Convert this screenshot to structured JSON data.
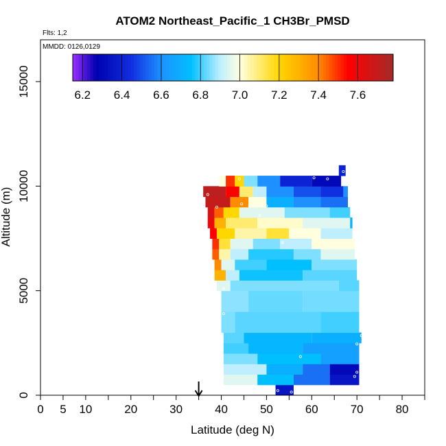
{
  "chart_data": {
    "type": "heatmap",
    "title": "ATOM2 Northeast_Pacific_1 CH3Br_PMSD",
    "annotations": {
      "flights": "Flts: 1,2",
      "dates": "MMDD: 0126,0129"
    },
    "xlabel": "Latitude (deg N)",
    "ylabel": "Altitude (m)",
    "xlim": [
      0,
      85
    ],
    "ylim": [
      0,
      17000
    ],
    "xticks": [
      0,
      5,
      10,
      20,
      30,
      40,
      50,
      60,
      70,
      80
    ],
    "xtick_labels": [
      "0",
      "5",
      "10",
      "20",
      "30",
      "40",
      "50",
      "60",
      "70",
      "80"
    ],
    "x_minor_ticks": [
      15,
      25,
      35,
      45,
      55,
      65,
      75,
      85
    ],
    "yticks": [
      0,
      5000,
      10000,
      15000
    ],
    "ytick_labels": [
      "0",
      "5000",
      "10000",
      "15000"
    ],
    "marker": {
      "latitude": 35,
      "label": ""
    },
    "colorbar": {
      "range": [
        6.15,
        7.78
      ],
      "ticks": [
        6.2,
        6.4,
        6.6,
        6.8,
        7.0,
        7.2,
        7.4,
        7.6
      ],
      "tick_labels": [
        "6.2",
        "6.4",
        "6.6",
        "6.8",
        "7.0",
        "7.2",
        "7.4",
        "7.6"
      ],
      "stops": [
        {
          "v": 6.15,
          "c": "#9B30FF"
        },
        {
          "v": 6.27,
          "c": "#0000B0"
        },
        {
          "v": 6.45,
          "c": "#1030E0"
        },
        {
          "v": 6.6,
          "c": "#1E90FF"
        },
        {
          "v": 6.75,
          "c": "#00BFFF"
        },
        {
          "v": 6.9,
          "c": "#BFEFFF"
        },
        {
          "v": 7.0,
          "c": "#FFFFE0"
        },
        {
          "v": 7.2,
          "c": "#FFD700"
        },
        {
          "v": 7.4,
          "c": "#FF8C00"
        },
        {
          "v": 7.55,
          "c": "#FF0000"
        },
        {
          "v": 7.78,
          "c": "#A52A2A"
        }
      ]
    },
    "rows": [
      {
        "alt_bottom": 0,
        "alt_top": 500,
        "cells": [
          [
            52,
            56,
            6.35
          ]
        ]
      },
      {
        "alt_bottom": 500,
        "alt_top": 1000,
        "cells": [
          [
            40.5,
            48,
            6.95
          ],
          [
            48,
            56,
            6.75
          ],
          [
            56,
            64,
            6.55
          ],
          [
            64,
            70.5,
            6.35
          ]
        ]
      },
      {
        "alt_bottom": 1000,
        "alt_top": 1500,
        "cells": [
          [
            40.5,
            50,
            6.9
          ],
          [
            50,
            58,
            6.7
          ],
          [
            58,
            64,
            6.55
          ],
          [
            64,
            70.5,
            6.3
          ]
        ]
      },
      {
        "alt_bottom": 1500,
        "alt_top": 2000,
        "cells": [
          [
            40.5,
            48,
            6.85
          ],
          [
            48,
            62,
            6.75
          ],
          [
            62,
            70.5,
            6.65
          ]
        ]
      },
      {
        "alt_bottom": 2000,
        "alt_top": 2500,
        "cells": [
          [
            40.5,
            46,
            6.8
          ],
          [
            46,
            58,
            6.72
          ],
          [
            58,
            70.5,
            6.65
          ]
        ]
      },
      {
        "alt_bottom": 2500,
        "alt_top": 3000,
        "cells": [
          [
            40.5,
            45,
            6.82
          ],
          [
            45,
            60,
            6.72
          ],
          [
            60,
            71,
            6.7
          ]
        ]
      },
      {
        "alt_bottom": 3000,
        "alt_top": 4000,
        "cells": [
          [
            40,
            43,
            6.85
          ],
          [
            43,
            62,
            6.82
          ],
          [
            62,
            70.5,
            6.8
          ]
        ]
      },
      {
        "alt_bottom": 4000,
        "alt_top": 5000,
        "cells": [
          [
            40,
            46,
            6.86
          ],
          [
            46,
            58,
            6.83
          ],
          [
            58,
            70.5,
            6.84
          ]
        ]
      },
      {
        "alt_bottom": 5000,
        "alt_top": 5500,
        "cells": [
          [
            39,
            42,
            6.95
          ],
          [
            42,
            66,
            6.85
          ],
          [
            66,
            70.5,
            6.82
          ]
        ]
      },
      {
        "alt_bottom": 5500,
        "alt_top": 6000,
        "cells": [
          [
            38.5,
            41,
            7.3
          ],
          [
            41,
            44,
            6.9
          ],
          [
            44,
            58,
            6.76
          ],
          [
            58,
            70,
            6.82
          ]
        ]
      },
      {
        "alt_bottom": 6000,
        "alt_top": 6500,
        "cells": [
          [
            38.5,
            40,
            7.4
          ],
          [
            40,
            43,
            6.95
          ],
          [
            43,
            50,
            6.8
          ],
          [
            50,
            60,
            6.75
          ],
          [
            60,
            70,
            6.85
          ]
        ]
      },
      {
        "alt_bottom": 6500,
        "alt_top": 7000,
        "cells": [
          [
            38,
            39.5,
            7.45
          ],
          [
            39.5,
            42,
            7.05
          ],
          [
            42,
            46,
            6.9
          ],
          [
            46,
            56,
            6.78
          ],
          [
            56,
            62,
            6.85
          ],
          [
            62,
            69.5,
            6.95
          ]
        ]
      },
      {
        "alt_bottom": 7000,
        "alt_top": 7500,
        "cells": [
          [
            38,
            39.5,
            7.5
          ],
          [
            39.5,
            42,
            7.15
          ],
          [
            42,
            47,
            6.95
          ],
          [
            47,
            53,
            6.85
          ],
          [
            53,
            60,
            6.9
          ],
          [
            60,
            69.5,
            7.0
          ]
        ]
      },
      {
        "alt_bottom": 7500,
        "alt_top": 8000,
        "cells": [
          [
            37.5,
            39,
            7.55
          ],
          [
            39,
            43,
            7.2
          ],
          [
            43,
            50,
            7.05
          ],
          [
            50,
            55,
            7.15
          ],
          [
            55,
            62,
            7.0
          ],
          [
            62,
            69,
            6.9
          ]
        ]
      },
      {
        "alt_bottom": 8000,
        "alt_top": 8500,
        "cells": [
          [
            37,
            38.5,
            7.6
          ],
          [
            38.5,
            41,
            7.3
          ],
          [
            41,
            48,
            7.1
          ],
          [
            48,
            58,
            7.02
          ],
          [
            58,
            68.5,
            6.95
          ],
          [
            68.5,
            69,
            6.7
          ]
        ]
      },
      {
        "alt_bottom": 8500,
        "alt_top": 9000,
        "cells": [
          [
            37,
            38.5,
            7.65
          ],
          [
            38.5,
            40.5,
            7.45
          ],
          [
            40.5,
            44,
            7.2
          ],
          [
            44,
            54,
            6.95
          ],
          [
            54,
            64,
            6.85
          ],
          [
            64,
            68.5,
            6.8
          ]
        ]
      },
      {
        "alt_bottom": 9000,
        "alt_top": 9500,
        "cells": [
          [
            36.5,
            42,
            7.7
          ],
          [
            42,
            46,
            7.4
          ],
          [
            46,
            50,
            7.0
          ],
          [
            50,
            56,
            6.7
          ],
          [
            56,
            62,
            6.6
          ],
          [
            62,
            68,
            6.55
          ]
        ]
      },
      {
        "alt_bottom": 9500,
        "alt_top": 10000,
        "cells": [
          [
            36,
            41,
            7.72
          ],
          [
            41,
            44,
            7.55
          ],
          [
            44,
            47,
            7.1
          ],
          [
            47,
            50,
            6.9
          ],
          [
            50,
            56,
            6.6
          ],
          [
            56,
            62,
            6.5
          ],
          [
            62,
            67,
            6.45
          ],
          [
            67,
            68,
            6.6
          ]
        ]
      },
      {
        "alt_bottom": 10000,
        "alt_top": 10500,
        "cells": [
          [
            39.5,
            41,
            7.0
          ],
          [
            41,
            43,
            7.5
          ],
          [
            43,
            45,
            7.2
          ],
          [
            45,
            48,
            6.85
          ],
          [
            48,
            53,
            6.6
          ],
          [
            53,
            60,
            6.4
          ],
          [
            60,
            66.5,
            6.3
          ]
        ]
      },
      {
        "alt_bottom": 10500,
        "alt_top": 11000,
        "cells": [
          [
            66,
            67.5,
            6.4
          ]
        ]
      }
    ],
    "sample_points": [
      [
        55.5,
        150
      ],
      [
        52.5,
        220
      ],
      [
        69.5,
        900
      ],
      [
        70,
        1100
      ],
      [
        57.5,
        1850
      ],
      [
        70,
        2450
      ],
      [
        71,
        2850
      ],
      [
        40.5,
        3900
      ],
      [
        40.5,
        5100
      ],
      [
        53.5,
        7300
      ],
      [
        48.5,
        8600
      ],
      [
        44.5,
        9150
      ],
      [
        49,
        9100
      ],
      [
        50,
        9050
      ],
      [
        39,
        9000
      ],
      [
        37,
        9600
      ],
      [
        44,
        10350
      ],
      [
        60.5,
        10400
      ],
      [
        63.5,
        10350
      ],
      [
        67,
        10700
      ]
    ]
  }
}
